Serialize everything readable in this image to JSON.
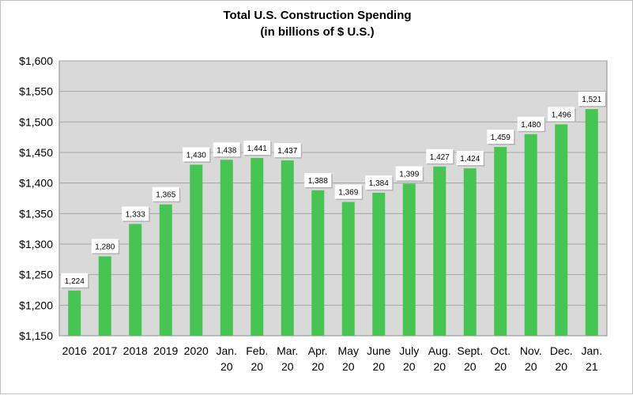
{
  "chart_data": {
    "type": "bar",
    "title": "Total U.S. Construction Spending",
    "subtitle": "(in billions of $ U.S.)",
    "xlabel": "",
    "ylabel": "",
    "ylim": [
      1150,
      1600
    ],
    "y_ticks": [
      1150,
      1200,
      1250,
      1300,
      1350,
      1400,
      1450,
      1500,
      1550,
      1600
    ],
    "y_tick_labels": [
      "$1,150",
      "$1,200",
      "$1,250",
      "$1,300",
      "$1,350",
      "$1,400",
      "$1,450",
      "$1,500",
      "$1,550",
      "$1,600"
    ],
    "grid": true,
    "categories": [
      [
        "2016"
      ],
      [
        "2017"
      ],
      [
        "2018"
      ],
      [
        "2019"
      ],
      [
        "2020"
      ],
      [
        "Jan.",
        "20"
      ],
      [
        "Feb.",
        "20"
      ],
      [
        "Mar.",
        "20"
      ],
      [
        "Apr.",
        "20"
      ],
      [
        "May",
        "20"
      ],
      [
        "June",
        "20"
      ],
      [
        "July",
        "20"
      ],
      [
        "Aug.",
        "20"
      ],
      [
        "Sept.",
        "20"
      ],
      [
        "Oct.",
        "20"
      ],
      [
        "Nov.",
        "20"
      ],
      [
        "Dec.",
        "20"
      ],
      [
        "Jan.",
        "21"
      ]
    ],
    "values": [
      1224,
      1280,
      1333,
      1365,
      1430,
      1438,
      1441,
      1437,
      1388,
      1369,
      1384,
      1399,
      1427,
      1424,
      1459,
      1480,
      1496,
      1521
    ],
    "data_labels": [
      "1,224",
      "1,280",
      "1,333",
      "1,365",
      "1,430",
      "1,438",
      "1,441",
      "1,437",
      "1,388",
      "1,369",
      "1,384",
      "1,399",
      "1,427",
      "1,424",
      "1,459",
      "1,480",
      "1,496",
      "1,521"
    ],
    "colors": {
      "bar": "#47c552",
      "plot_bg": "#d9d9d9",
      "grid": "#a6a6a6",
      "label_bg": "#ffffff"
    }
  }
}
